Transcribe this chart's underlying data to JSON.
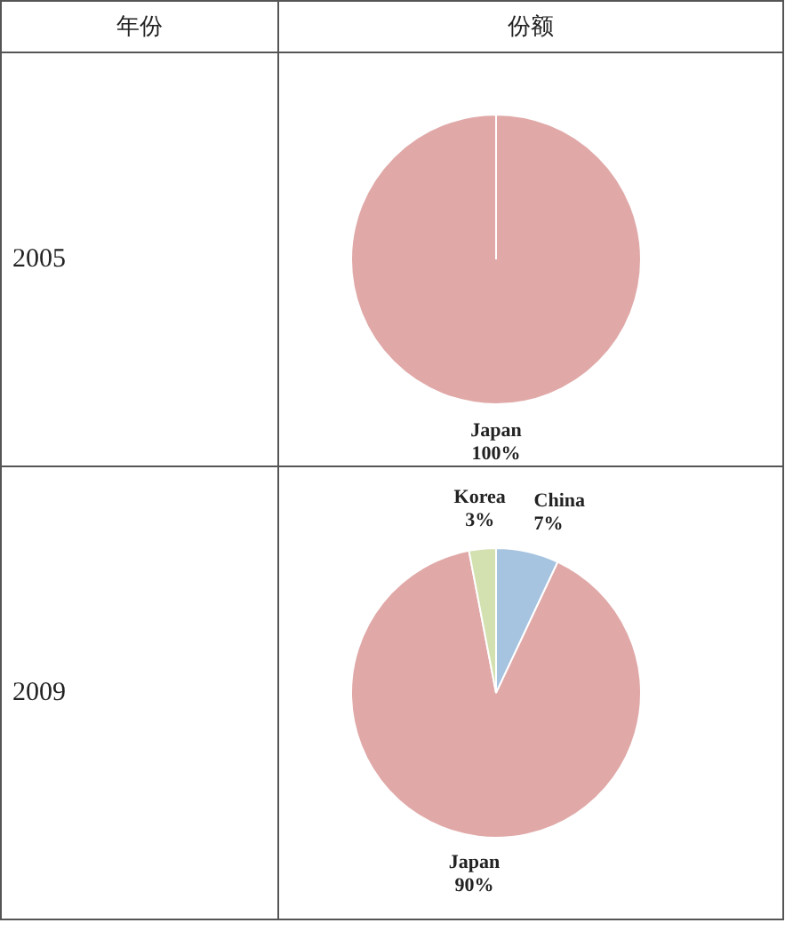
{
  "chart_data": [
    {
      "type": "pie",
      "title": "2005",
      "annotations": [
        "年份",
        "份额"
      ],
      "categories": [
        "Japan"
      ],
      "values": [
        100
      ],
      "colors": [
        "#e0a9a8"
      ],
      "value_labels": [
        "100%"
      ]
    },
    {
      "type": "pie",
      "title": "2009",
      "categories": [
        "China",
        "Japan",
        "Korea"
      ],
      "values": [
        7,
        90,
        3
      ],
      "colors": [
        "#a6c3e0",
        "#e0a9a8",
        "#d3e0b0"
      ],
      "value_labels": [
        "7%",
        "90%",
        "3%"
      ]
    }
  ]
}
